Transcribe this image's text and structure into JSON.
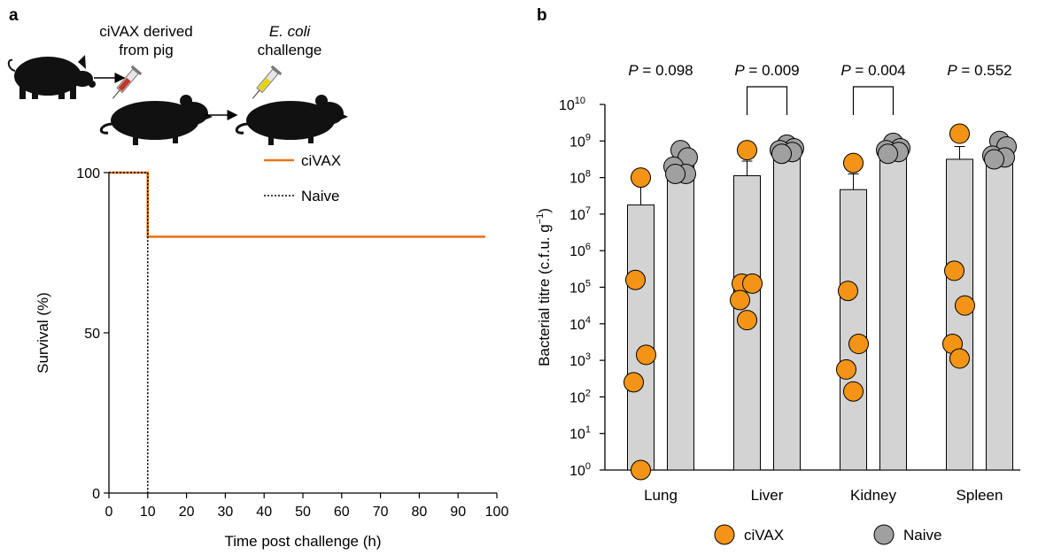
{
  "panel_a": {
    "letter": "a",
    "schematic": {
      "step1_line1": "ciVAX derived",
      "step1_line2": "from pig",
      "step2_line1": "E. coli",
      "step2_line2": "challenge",
      "icons": [
        "pig-icon",
        "syringe-red-icon",
        "mouse-icon",
        "syringe-yellow-icon",
        "arrow-icon"
      ]
    }
  },
  "panel_b": {
    "letter": "b"
  },
  "chart_data": [
    {
      "type": "line",
      "xlabel": "Time post challenge (h)",
      "ylabel": "Survival (%)",
      "xlim": [
        0,
        100
      ],
      "ylim": [
        0,
        100
      ],
      "xticks": [
        "0",
        "10",
        "20",
        "30",
        "40",
        "50",
        "60",
        "70",
        "80",
        "90",
        "100"
      ],
      "yticks": [
        "0",
        "50",
        "100"
      ],
      "legend_position": "top-right",
      "series": [
        {
          "name": "ciVAX",
          "color": "#e8761a",
          "style": "solid",
          "x": [
            0,
            10,
            10,
            97
          ],
          "y": [
            100,
            100,
            80,
            80
          ]
        },
        {
          "name": "Naive",
          "color": "#000000",
          "style": "dotted",
          "x": [
            0,
            10,
            10
          ],
          "y": [
            100,
            100,
            0
          ]
        }
      ]
    },
    {
      "type": "bar",
      "ylabel": "Bacterial titre (c.f.u. g",
      "ylabel_sup": "−1",
      "ylabel_end": ")",
      "yscale": "log",
      "ylim_exp": [
        0,
        10
      ],
      "categories": [
        "Lung",
        "Liver",
        "Kidney",
        "Spleen"
      ],
      "pvalues": [
        {
          "p": "P",
          "value": " = 0.098",
          "bracket": false
        },
        {
          "p": "P",
          "value": " = 0.009",
          "bracket": true
        },
        {
          "p": "P",
          "value": " = 0.004",
          "bracket": true
        },
        {
          "p": "P",
          "value": " = 0.552",
          "bracket": false
        }
      ],
      "series": [
        {
          "name": "ciVAX",
          "color": "#f39416",
          "bar_exp": [
            7.25,
            8.05,
            7.67,
            8.5
          ],
          "err_exp": [
            8.0,
            8.45,
            8.1,
            8.85
          ],
          "points_exp": [
            [
              8.0,
              5.2,
              3.15,
              2.4,
              0
            ],
            [
              8.75,
              5.1,
              5.1,
              4.65,
              4.1
            ],
            [
              8.4,
              4.9,
              3.45,
              2.75,
              2.15
            ],
            [
              9.2,
              5.45,
              4.5,
              3.45,
              3.05
            ]
          ]
        },
        {
          "name": "Naive",
          "color": "#a0a0a0",
          "bar_exp": [
            8.5,
            8.85,
            8.8,
            8.75
          ],
          "err_exp": [
            8.5,
            8.85,
            8.8,
            8.75
          ],
          "points_exp": [
            [
              8.75,
              8.55,
              8.3,
              8.1,
              8.1
            ],
            [
              8.9,
              8.8,
              8.75,
              8.7,
              8.65
            ],
            [
              8.95,
              8.8,
              8.75,
              8.7,
              8.65
            ],
            [
              9.0,
              8.85,
              8.6,
              8.55,
              8.5
            ]
          ]
        }
      ],
      "legend_position": "bottom"
    }
  ]
}
